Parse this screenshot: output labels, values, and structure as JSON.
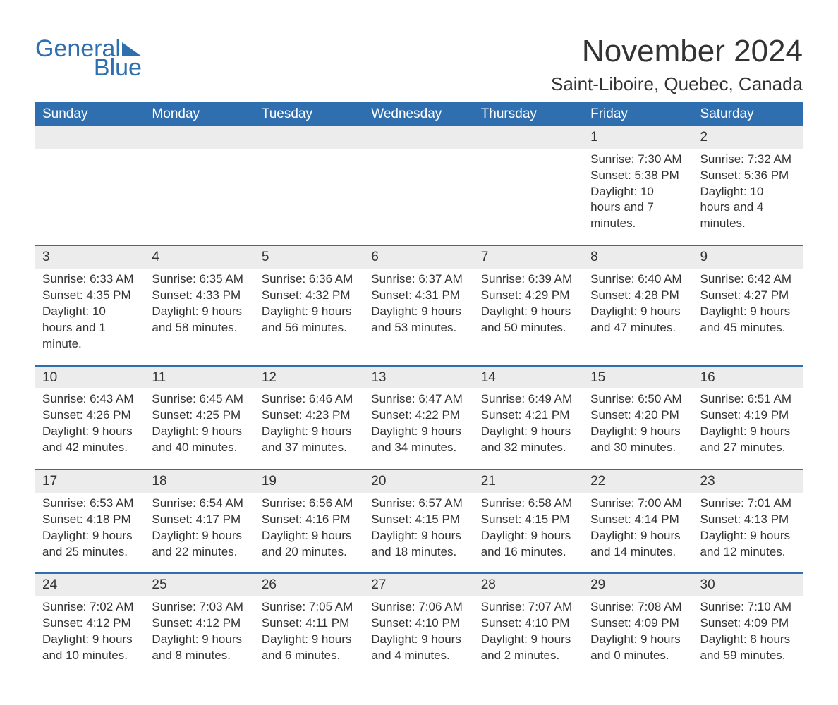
{
  "logo": {
    "line1": "General",
    "line2": "Blue"
  },
  "title": "November 2024",
  "location": "Saint-Liboire, Quebec, Canada",
  "colors": {
    "header_bg": "#2f6fb0",
    "header_text": "#ffffff",
    "daynum_bg": "#ececec",
    "rule": "#2f6fb0",
    "body_text": "#333333",
    "page_bg": "#ffffff"
  },
  "fonts": {
    "title_pt": 44,
    "location_pt": 26,
    "weekday_pt": 19,
    "daynum_pt": 19,
    "body_pt": 17
  },
  "weekdays": [
    "Sunday",
    "Monday",
    "Tuesday",
    "Wednesday",
    "Thursday",
    "Friday",
    "Saturday"
  ],
  "leading_blanks": 5,
  "days": [
    {
      "n": 1,
      "sunrise": "7:30 AM",
      "sunset": "5:38 PM",
      "daylight": "10 hours and 7 minutes."
    },
    {
      "n": 2,
      "sunrise": "7:32 AM",
      "sunset": "5:36 PM",
      "daylight": "10 hours and 4 minutes."
    },
    {
      "n": 3,
      "sunrise": "6:33 AM",
      "sunset": "4:35 PM",
      "daylight": "10 hours and 1 minute."
    },
    {
      "n": 4,
      "sunrise": "6:35 AM",
      "sunset": "4:33 PM",
      "daylight": "9 hours and 58 minutes."
    },
    {
      "n": 5,
      "sunrise": "6:36 AM",
      "sunset": "4:32 PM",
      "daylight": "9 hours and 56 minutes."
    },
    {
      "n": 6,
      "sunrise": "6:37 AM",
      "sunset": "4:31 PM",
      "daylight": "9 hours and 53 minutes."
    },
    {
      "n": 7,
      "sunrise": "6:39 AM",
      "sunset": "4:29 PM",
      "daylight": "9 hours and 50 minutes."
    },
    {
      "n": 8,
      "sunrise": "6:40 AM",
      "sunset": "4:28 PM",
      "daylight": "9 hours and 47 minutes."
    },
    {
      "n": 9,
      "sunrise": "6:42 AM",
      "sunset": "4:27 PM",
      "daylight": "9 hours and 45 minutes."
    },
    {
      "n": 10,
      "sunrise": "6:43 AM",
      "sunset": "4:26 PM",
      "daylight": "9 hours and 42 minutes."
    },
    {
      "n": 11,
      "sunrise": "6:45 AM",
      "sunset": "4:25 PM",
      "daylight": "9 hours and 40 minutes."
    },
    {
      "n": 12,
      "sunrise": "6:46 AM",
      "sunset": "4:23 PM",
      "daylight": "9 hours and 37 minutes."
    },
    {
      "n": 13,
      "sunrise": "6:47 AM",
      "sunset": "4:22 PM",
      "daylight": "9 hours and 34 minutes."
    },
    {
      "n": 14,
      "sunrise": "6:49 AM",
      "sunset": "4:21 PM",
      "daylight": "9 hours and 32 minutes."
    },
    {
      "n": 15,
      "sunrise": "6:50 AM",
      "sunset": "4:20 PM",
      "daylight": "9 hours and 30 minutes."
    },
    {
      "n": 16,
      "sunrise": "6:51 AM",
      "sunset": "4:19 PM",
      "daylight": "9 hours and 27 minutes."
    },
    {
      "n": 17,
      "sunrise": "6:53 AM",
      "sunset": "4:18 PM",
      "daylight": "9 hours and 25 minutes."
    },
    {
      "n": 18,
      "sunrise": "6:54 AM",
      "sunset": "4:17 PM",
      "daylight": "9 hours and 22 minutes."
    },
    {
      "n": 19,
      "sunrise": "6:56 AM",
      "sunset": "4:16 PM",
      "daylight": "9 hours and 20 minutes."
    },
    {
      "n": 20,
      "sunrise": "6:57 AM",
      "sunset": "4:15 PM",
      "daylight": "9 hours and 18 minutes."
    },
    {
      "n": 21,
      "sunrise": "6:58 AM",
      "sunset": "4:15 PM",
      "daylight": "9 hours and 16 minutes."
    },
    {
      "n": 22,
      "sunrise": "7:00 AM",
      "sunset": "4:14 PM",
      "daylight": "9 hours and 14 minutes."
    },
    {
      "n": 23,
      "sunrise": "7:01 AM",
      "sunset": "4:13 PM",
      "daylight": "9 hours and 12 minutes."
    },
    {
      "n": 24,
      "sunrise": "7:02 AM",
      "sunset": "4:12 PM",
      "daylight": "9 hours and 10 minutes."
    },
    {
      "n": 25,
      "sunrise": "7:03 AM",
      "sunset": "4:12 PM",
      "daylight": "9 hours and 8 minutes."
    },
    {
      "n": 26,
      "sunrise": "7:05 AM",
      "sunset": "4:11 PM",
      "daylight": "9 hours and 6 minutes."
    },
    {
      "n": 27,
      "sunrise": "7:06 AM",
      "sunset": "4:10 PM",
      "daylight": "9 hours and 4 minutes."
    },
    {
      "n": 28,
      "sunrise": "7:07 AM",
      "sunset": "4:10 PM",
      "daylight": "9 hours and 2 minutes."
    },
    {
      "n": 29,
      "sunrise": "7:08 AM",
      "sunset": "4:09 PM",
      "daylight": "9 hours and 0 minutes."
    },
    {
      "n": 30,
      "sunrise": "7:10 AM",
      "sunset": "4:09 PM",
      "daylight": "8 hours and 59 minutes."
    }
  ],
  "labels": {
    "sunrise": "Sunrise: ",
    "sunset": "Sunset: ",
    "daylight": "Daylight: "
  }
}
